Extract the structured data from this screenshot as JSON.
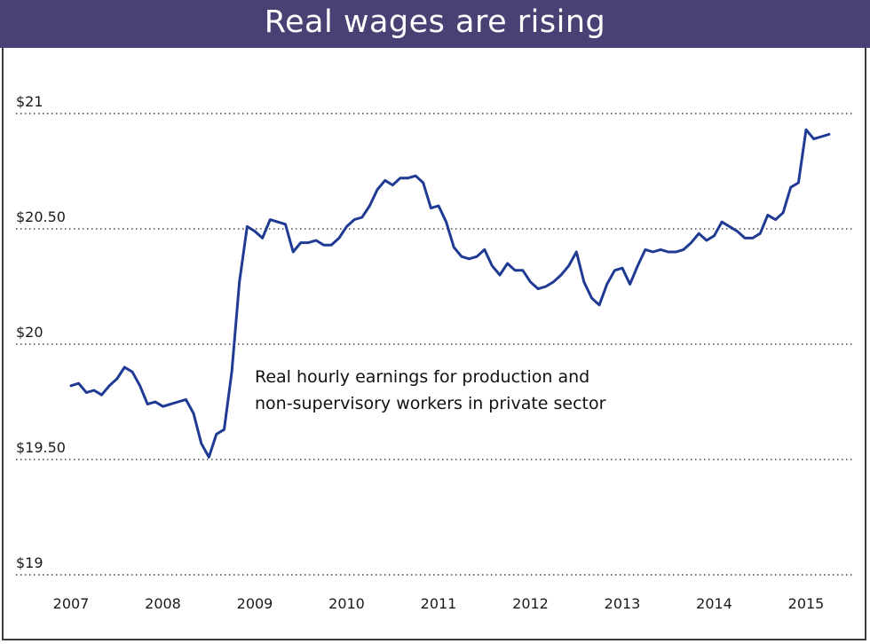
{
  "chart_data": {
    "type": "line",
    "title": "Real wages are rising",
    "xlabel": "",
    "ylabel": "",
    "ylim": [
      19,
      21
    ],
    "xlim": [
      2007,
      2015.5
    ],
    "y_ticks": [
      {
        "value": 21,
        "label": "$21"
      },
      {
        "value": 20.5,
        "label": "$20.50"
      },
      {
        "value": 20,
        "label": "$20"
      },
      {
        "value": 19.5,
        "label": "$19.50"
      },
      {
        "value": 19,
        "label": "$19"
      }
    ],
    "x_ticks": [
      "2007",
      "2008",
      "2009",
      "2010",
      "2011",
      "2012",
      "2013",
      "2014",
      "2015"
    ],
    "grid": "horizontal dotted",
    "line_color": "#1f3a93",
    "annotation": [
      "Real hourly earnings for production and",
      "non-supervisory workers in private sector"
    ],
    "series": [
      {
        "x": [
          2007.0,
          2007.083,
          2007.167,
          2007.25,
          2007.333,
          2007.417,
          2007.5,
          2007.583,
          2007.667,
          2007.75,
          2007.833,
          2007.917,
          2008.0,
          2008.083,
          2008.167,
          2008.25,
          2008.333,
          2008.417,
          2008.5,
          2008.583,
          2008.667,
          2008.75,
          2008.833,
          2008.917,
          2009.0,
          2009.083,
          2009.167,
          2009.25,
          2009.333,
          2009.417,
          2009.5,
          2009.583,
          2009.667,
          2009.75,
          2009.833,
          2009.917,
          2010.0,
          2010.083,
          2010.167,
          2010.25,
          2010.333,
          2010.417,
          2010.5,
          2010.583,
          2010.667,
          2010.75,
          2010.833,
          2010.917,
          2011.0,
          2011.083,
          2011.167,
          2011.25,
          2011.333,
          2011.417,
          2011.5,
          2011.583,
          2011.667,
          2011.75,
          2011.833,
          2011.917,
          2012.0,
          2012.083,
          2012.167,
          2012.25,
          2012.333,
          2012.417,
          2012.5,
          2012.583,
          2012.667,
          2012.75,
          2012.833,
          2012.917,
          2013.0,
          2013.083,
          2013.167,
          2013.25,
          2013.333,
          2013.417,
          2013.5,
          2013.583,
          2013.667,
          2013.75,
          2013.833,
          2013.917,
          2014.0,
          2014.083,
          2014.167,
          2014.25,
          2014.333,
          2014.417,
          2014.5,
          2014.583,
          2014.667,
          2014.75,
          2014.833,
          2014.917,
          2015.0,
          2015.083,
          2015.167,
          2015.25
        ],
        "values": [
          19.82,
          19.83,
          19.79,
          19.8,
          19.78,
          19.82,
          19.85,
          19.9,
          19.88,
          19.82,
          19.74,
          19.75,
          19.73,
          19.74,
          19.75,
          19.76,
          19.7,
          19.57,
          19.51,
          19.61,
          19.63,
          19.88,
          20.27,
          20.51,
          20.49,
          20.46,
          20.54,
          20.53,
          20.52,
          20.4,
          20.44,
          20.44,
          20.45,
          20.43,
          20.43,
          20.46,
          20.51,
          20.54,
          20.55,
          20.6,
          20.67,
          20.71,
          20.69,
          20.72,
          20.72,
          20.73,
          20.7,
          20.59,
          20.6,
          20.53,
          20.42,
          20.38,
          20.37,
          20.38,
          20.41,
          20.34,
          20.3,
          20.35,
          20.32,
          20.32,
          20.27,
          20.24,
          20.25,
          20.27,
          20.3,
          20.34,
          20.4,
          20.27,
          20.2,
          20.17,
          20.26,
          20.32,
          20.33,
          20.26,
          20.34,
          20.41,
          20.4,
          20.41,
          20.4,
          20.4,
          20.41,
          20.44,
          20.48,
          20.45,
          20.47,
          20.53,
          20.51,
          20.49,
          20.46,
          20.46,
          20.48,
          20.56,
          20.54,
          20.57,
          20.68,
          20.7,
          20.93,
          20.89,
          20.9,
          20.91
        ]
      }
    ]
  }
}
